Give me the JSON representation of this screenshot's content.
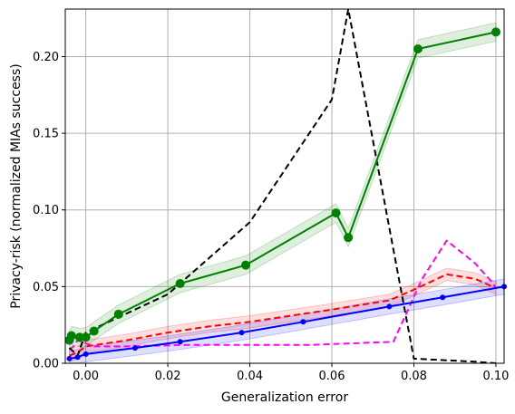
{
  "chart_data": {
    "type": "line",
    "title": "",
    "xlabel": "Generalization error",
    "ylabel": "Privacy-risk (normalized MIAs success)",
    "xlim": [
      -0.005,
      0.102
    ],
    "ylim": [
      0,
      0.231
    ],
    "x_ticks": [
      0.0,
      0.02,
      0.04,
      0.06,
      0.08,
      0.1
    ],
    "x_tick_labels": [
      "0.00",
      "0.02",
      "0.04",
      "0.06",
      "0.08",
      "0.10"
    ],
    "y_ticks": [
      0.0,
      0.05,
      0.1,
      0.15,
      0.2
    ],
    "y_tick_labels": [
      "0.00",
      "0.05",
      "0.10",
      "0.15",
      "0.20"
    ],
    "grid": true,
    "legend": "none",
    "series": [
      {
        "color": "#ff00ff",
        "dash": "dashed",
        "marker": "none",
        "x": [
          -0.004,
          -0.003,
          -0.002,
          0.0,
          0.002,
          0.01,
          0.025,
          0.04,
          0.055,
          0.065,
          0.075,
          0.082,
          0.088,
          0.095,
          0.099,
          0.1
        ],
        "y": [
          0.009,
          0.011,
          0.015,
          0.013,
          0.011,
          0.011,
          0.012,
          0.012,
          0.012,
          0.013,
          0.014,
          0.055,
          0.08,
          0.065,
          0.053,
          0.049
        ]
      },
      {
        "color": "#ff0000",
        "dash": "dashed",
        "marker": "none",
        "band_width": 0.004,
        "x": [
          -0.004,
          -0.002,
          0.0,
          0.01,
          0.02,
          0.03,
          0.04,
          0.05,
          0.06,
          0.074,
          0.08,
          0.088,
          0.095,
          0.1
        ],
        "y": [
          0.005,
          0.007,
          0.011,
          0.015,
          0.02,
          0.024,
          0.027,
          0.031,
          0.035,
          0.041,
          0.048,
          0.058,
          0.055,
          0.049
        ]
      },
      {
        "color": "#0000ff",
        "dash": "solid",
        "marker": "dot",
        "band_width": 0.005,
        "x": [
          -0.004,
          -0.002,
          0.0,
          0.012,
          0.023,
          0.038,
          0.053,
          0.074,
          0.087,
          0.102
        ],
        "y": [
          0.003,
          0.004,
          0.006,
          0.01,
          0.014,
          0.02,
          0.027,
          0.037,
          0.043,
          0.05
        ]
      },
      {
        "color": "#000000",
        "dash": "dashed",
        "marker": "none",
        "x": [
          -0.004,
          -0.002,
          0.0,
          0.02,
          0.04,
          0.06,
          0.064,
          0.08,
          0.095,
          0.1
        ],
        "y": [
          0.01,
          0.005,
          0.02,
          0.045,
          0.092,
          0.172,
          0.231,
          0.003,
          0.001,
          0.0
        ]
      },
      {
        "color": "#008000",
        "dash": "solid",
        "marker": "circle",
        "band_width": 0.006,
        "x": [
          -0.004,
          -0.0035,
          -0.0015,
          0.0,
          0.002,
          0.008,
          0.023,
          0.039,
          0.061,
          0.064,
          0.081,
          0.1
        ],
        "y": [
          0.015,
          0.018,
          0.017,
          0.017,
          0.021,
          0.032,
          0.052,
          0.064,
          0.098,
          0.082,
          0.205,
          0.216
        ]
      }
    ]
  }
}
